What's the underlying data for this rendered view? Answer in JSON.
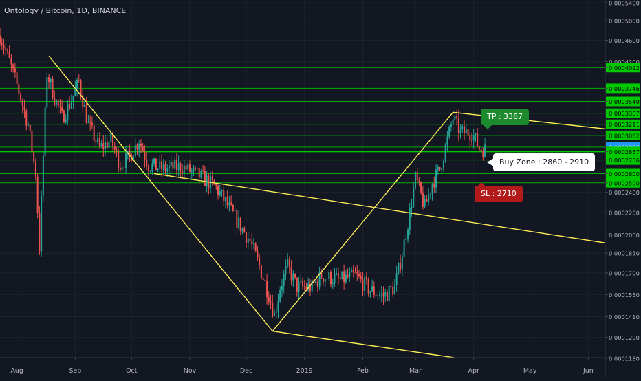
{
  "title": "Ontology / Bitcoin, 1D, BINANCE",
  "colors": {
    "background": "#131722",
    "grid": "#1e222d",
    "axis_text": "#b2b5be",
    "up": "#26a69a",
    "down": "#ef5350",
    "level_line": "#00c800",
    "trend_line": "#ffee58",
    "price_badge": "#2196f3"
  },
  "chart_data": {
    "type": "candlestick",
    "title": "Ontology / Bitcoin, 1D, BINANCE",
    "x_start": "2018-07-23",
    "x_end": "2019-06-10",
    "x_ticks": [
      {
        "label": "Aug",
        "date": "2018-08-01"
      },
      {
        "label": "Sep",
        "date": "2018-09-01"
      },
      {
        "label": "Oct",
        "date": "2018-10-01"
      },
      {
        "label": "Nov",
        "date": "2018-11-01"
      },
      {
        "label": "Dec",
        "date": "2018-12-01"
      },
      {
        "label": "2019",
        "date": "2019-01-01"
      },
      {
        "label": "Feb",
        "date": "2019-02-01"
      },
      {
        "label": "Mar",
        "date": "2019-03-01"
      },
      {
        "label": "Apr",
        "date": "2019-04-01"
      },
      {
        "label": "May",
        "date": "2019-05-01"
      },
      {
        "label": "Jun",
        "date": "2019-06-01"
      }
    ],
    "y_scale": "log",
    "y_ticks": [
      "0.0005400",
      "0.0005000",
      "0.0004600",
      "0.0004200",
      "0.0004092",
      "0.0003746",
      "0.0003540",
      "0.0003367",
      "0.0003211",
      "0.0003062",
      "0.0002912",
      "0.0002857",
      "0.0002756",
      "0.0002600",
      "0.0002500",
      "0.0002400",
      "0.0002200",
      "0.0002000",
      "0.0001850",
      "0.0001700",
      "0.0001550",
      "0.0001410",
      "0.0001290",
      "0.0001180"
    ],
    "horizontal_levels": [
      0.0004092,
      0.0003746,
      0.000354,
      0.0003367,
      0.0003211,
      0.0003062,
      0.0002912,
      0.0002857,
      0.0002756,
      0.00026,
      0.00025
    ],
    "main_level": 0.0002857,
    "current_price": "0.0002912",
    "price_path": [
      [
        "2018-07-23",
        0.00047
      ],
      [
        "2018-07-28",
        0.00042
      ],
      [
        "2018-08-02",
        0.00037
      ],
      [
        "2018-08-07",
        0.00032
      ],
      [
        "2018-08-11",
        0.00026
      ],
      [
        "2018-08-13",
        0.00019
      ],
      [
        "2018-08-15",
        0.00028
      ],
      [
        "2018-08-17",
        0.0004
      ],
      [
        "2018-08-21",
        0.00036
      ],
      [
        "2018-08-25",
        0.00033
      ],
      [
        "2018-08-29",
        0.00035
      ],
      [
        "2018-09-03",
        0.000385
      ],
      [
        "2018-09-08",
        0.00032
      ],
      [
        "2018-09-14",
        0.00029
      ],
      [
        "2018-09-20",
        0.0003
      ],
      [
        "2018-09-25",
        0.00027
      ],
      [
        "2018-09-30",
        0.00028
      ],
      [
        "2018-10-05",
        0.0003
      ],
      [
        "2018-10-10",
        0.00027
      ],
      [
        "2018-10-18",
        0.000265
      ],
      [
        "2018-10-28",
        0.000268
      ],
      [
        "2018-11-08",
        0.000255
      ],
      [
        "2018-11-15",
        0.000245
      ],
      [
        "2018-11-20",
        0.00023
      ],
      [
        "2018-11-27",
        0.00021
      ],
      [
        "2018-12-03",
        0.000195
      ],
      [
        "2018-12-08",
        0.000175
      ],
      [
        "2018-12-13",
        0.000155
      ],
      [
        "2018-12-16",
        0.000142
      ],
      [
        "2018-12-19",
        0.00016
      ],
      [
        "2018-12-23",
        0.000175
      ],
      [
        "2018-12-28",
        0.00016
      ],
      [
        "2019-01-05",
        0.00016
      ],
      [
        "2019-01-10",
        0.000168
      ],
      [
        "2019-01-20",
        0.000165
      ],
      [
        "2019-01-28",
        0.000168
      ],
      [
        "2019-02-05",
        0.000158
      ],
      [
        "2019-02-12",
        0.000154
      ],
      [
        "2019-02-18",
        0.00016
      ],
      [
        "2019-02-22",
        0.000185
      ],
      [
        "2019-02-26",
        0.00022
      ],
      [
        "2019-03-01",
        0.000255
      ],
      [
        "2019-03-06",
        0.000225
      ],
      [
        "2019-03-10",
        0.00025
      ],
      [
        "2019-03-14",
        0.000265
      ],
      [
        "2019-03-18",
        0.0003
      ],
      [
        "2019-03-21",
        0.00033
      ],
      [
        "2019-03-25",
        0.00031
      ],
      [
        "2019-03-31",
        0.00031
      ],
      [
        "2019-04-04",
        0.00029
      ],
      [
        "2019-04-07",
        0.000288
      ]
    ],
    "trend_lines": [
      {
        "from": [
          "2018-08-18",
          0.00043
        ],
        "to": [
          "2018-12-15",
          0.0001325
        ]
      },
      {
        "from": [
          "2018-10-13",
          0.00026
        ],
        "to": [
          "2019-06-24",
          0.00019
        ]
      },
      {
        "from": [
          "2018-12-15",
          0.0001325
        ],
        "to": [
          "2019-03-21",
          0.000338
        ]
      },
      {
        "from": [
          "2019-03-21",
          0.000338
        ],
        "to": [
          "2019-06-24",
          0.000311
        ]
      },
      {
        "from": [
          "2018-12-15",
          0.0001325
        ],
        "to": [
          "2019-04-04",
          0.0001165
        ]
      }
    ],
    "xlabel": "",
    "ylabel": ""
  },
  "annotations": {
    "tp": "TP : 3367",
    "buy_zone": "Buy Zone : 2860 - 2910",
    "sl": "SL : 2710"
  }
}
